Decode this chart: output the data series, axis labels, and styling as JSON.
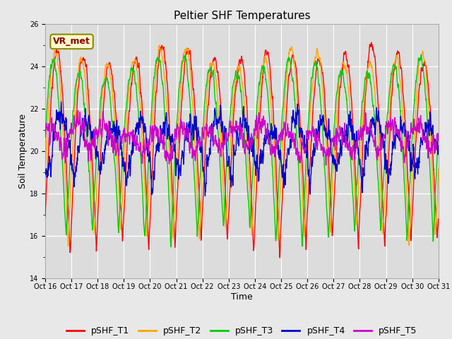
{
  "title": "Peltier SHF Temperatures",
  "xlabel": "Time",
  "ylabel": "Soil Temperature",
  "xlim": [
    0,
    15
  ],
  "ylim": [
    14,
    26
  ],
  "yticks": [
    14,
    16,
    18,
    20,
    22,
    24,
    26
  ],
  "xtick_labels": [
    "Oct 16",
    "Oct 17",
    "Oct 18",
    "Oct 19",
    "Oct 20",
    "Oct 21",
    "Oct 22",
    "Oct 23",
    "Oct 24",
    "Oct 25",
    "Oct 26",
    "Oct 27",
    "Oct 28",
    "Oct 29",
    "Oct 30",
    "Oct 31"
  ],
  "annotation_text": "VR_met",
  "colors": {
    "pSHF_T1": "#ff0000",
    "pSHF_T2": "#ffa500",
    "pSHF_T3": "#00cc00",
    "pSHF_T4": "#0000cc",
    "pSHF_T5": "#cc00cc"
  },
  "bg_color": "#e8e8e8",
  "plot_bg_color": "#dcdcdc",
  "grid_color": "#ffffff",
  "title_fontsize": 11,
  "axis_label_fontsize": 9,
  "tick_fontsize": 7,
  "legend_fontsize": 9,
  "line_width": 1.0,
  "n_points": 2000
}
